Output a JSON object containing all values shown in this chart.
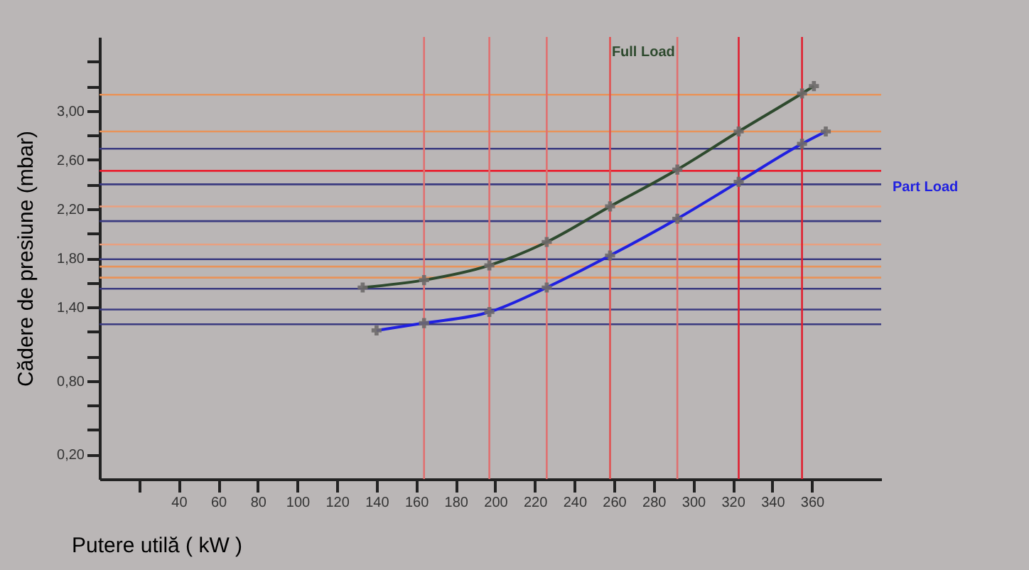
{
  "chart_data": {
    "type": "line",
    "xlabel": "Putere utilă ( kW )",
    "ylabel": "Cădere de presiune (mbar)",
    "xlim": [
      0,
      395
    ],
    "ylim": [
      0,
      3.6
    ],
    "xticks": [
      {
        "value": 20,
        "label": null
      },
      40,
      60,
      80,
      100,
      120,
      140,
      160,
      180,
      200,
      220,
      240,
      260,
      280,
      300,
      320,
      340,
      360
    ],
    "yticks": [
      {
        "value": 0.2,
        "label": "0,20"
      },
      {
        "value": 0.4,
        "label": null
      },
      {
        "value": 0.6,
        "label": null
      },
      {
        "value": 0.8,
        "label": "0,80"
      },
      {
        "value": 1.0,
        "label": null
      },
      {
        "value": 1.2,
        "label": null
      },
      {
        "value": 1.4,
        "label": "1,40"
      },
      {
        "value": 1.6,
        "label": null
      },
      {
        "value": 1.8,
        "label": "1,80"
      },
      {
        "value": 2.0,
        "label": null
      },
      {
        "value": 2.2,
        "label": "2,20"
      },
      {
        "value": 2.4,
        "label": null
      },
      {
        "value": 2.6,
        "label": "2,60"
      },
      {
        "value": 2.8,
        "label": null
      },
      {
        "value": 3.0,
        "label": "3,00"
      },
      {
        "value": 3.2,
        "label": null
      },
      {
        "value": 3.4,
        "label": null
      }
    ],
    "grid": false,
    "marker": "cross",
    "line_style": "solid",
    "series": [
      {
        "name": "Full Load",
        "color": "#2e4a2e",
        "x": [
          133,
          164,
          197,
          226,
          258,
          292,
          323,
          355,
          361
        ],
        "values": [
          1.56,
          1.62,
          1.74,
          1.93,
          2.22,
          2.52,
          2.83,
          3.14,
          3.2
        ]
      },
      {
        "name": "Part Load",
        "color": "#2020e0",
        "x": [
          140,
          164,
          197,
          226,
          258,
          292,
          323,
          355,
          367
        ],
        "values": [
          1.21,
          1.27,
          1.36,
          1.56,
          1.82,
          2.12,
          2.42,
          2.73,
          2.83
        ]
      }
    ],
    "ref_lines": [
      {
        "axis": "y",
        "value": 3.13,
        "color": "#e8935a"
      },
      {
        "axis": "y",
        "value": 2.83,
        "color": "#e8935a"
      },
      {
        "axis": "y",
        "value": 2.69,
        "color": "#3a3a80"
      },
      {
        "axis": "y",
        "value": 2.51,
        "color": "#e82030"
      },
      {
        "axis": "y",
        "value": 2.4,
        "color": "#3a3a80"
      },
      {
        "axis": "y",
        "value": 2.22,
        "color": "#e8a080"
      },
      {
        "axis": "y",
        "value": 2.1,
        "color": "#3a3a80"
      },
      {
        "axis": "y",
        "value": 1.91,
        "color": "#e8a080"
      },
      {
        "axis": "y",
        "value": 1.79,
        "color": "#3a3a80"
      },
      {
        "axis": "y",
        "value": 1.73,
        "color": "#e8935a"
      },
      {
        "axis": "y",
        "value": 1.64,
        "color": "#e8935a"
      },
      {
        "axis": "y",
        "value": 1.55,
        "color": "#3a3a80"
      },
      {
        "axis": "y",
        "value": 1.38,
        "color": "#3a3a80"
      },
      {
        "axis": "y",
        "value": 1.26,
        "color": "#3a3a80"
      },
      {
        "axis": "x",
        "value": 164,
        "color": "#e07070"
      },
      {
        "axis": "x",
        "value": 197,
        "color": "#e07070"
      },
      {
        "axis": "x",
        "value": 226,
        "color": "#e07070"
      },
      {
        "axis": "x",
        "value": 258,
        "color": "#e05050"
      },
      {
        "axis": "x",
        "value": 292,
        "color": "#e07070"
      },
      {
        "axis": "x",
        "value": 323,
        "color": "#e02030"
      },
      {
        "axis": "x",
        "value": 355,
        "color": "#e02030"
      }
    ]
  }
}
